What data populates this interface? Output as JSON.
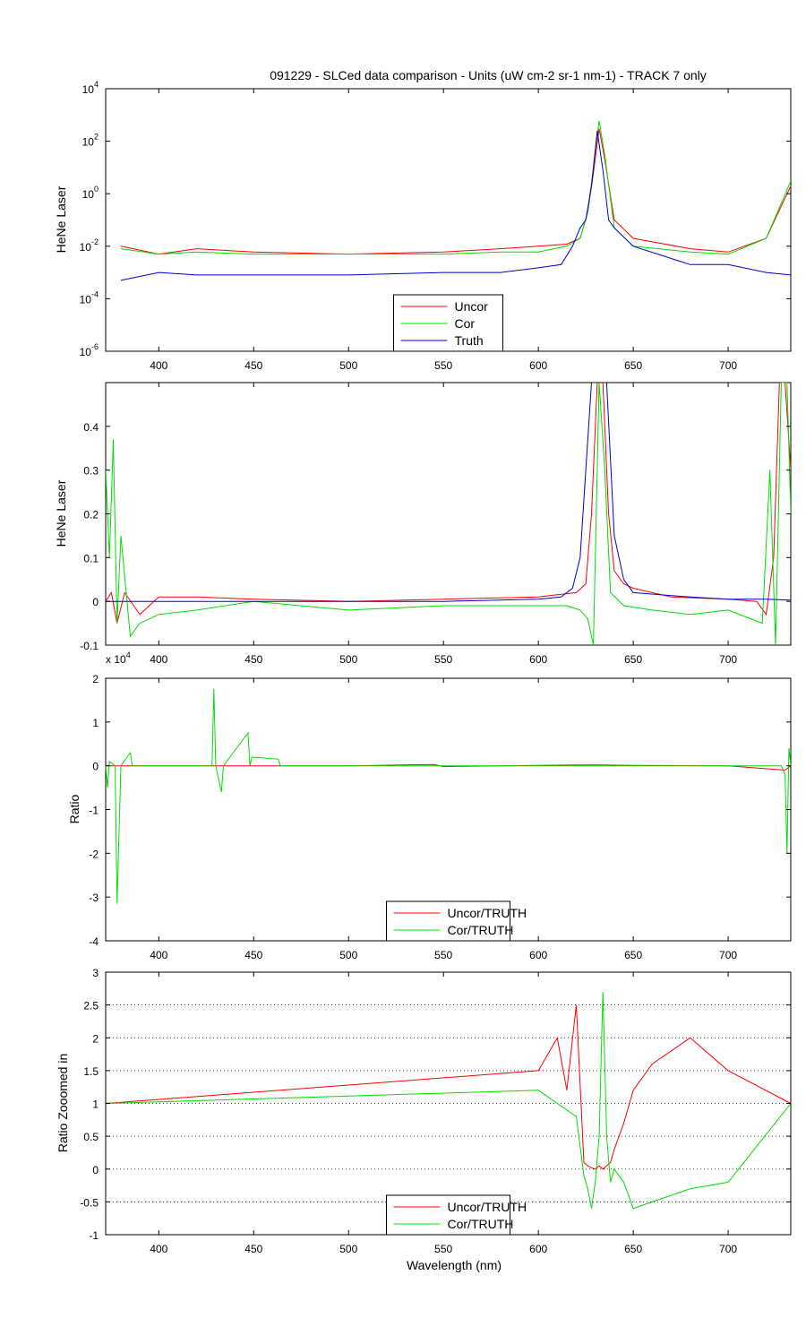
{
  "figure_title": "091229 - SLCed data comparison - Units (uW cm-2 sr-1 nm-1) - TRACK 7 only",
  "x_axis_label": "Wavelength (nm)",
  "colors": {
    "uncor": "#ff0000",
    "cor": "#00dd00",
    "truth": "#0000cc"
  },
  "chart_data": [
    {
      "type": "line",
      "ylabel": "HeNe Laser",
      "yscale": "log",
      "xlim": [
        372,
        733
      ],
      "ylim": [
        1e-06,
        10000.0
      ],
      "xticks": [
        "400",
        "450",
        "500",
        "550",
        "600",
        "650",
        "700"
      ],
      "yticks": [
        {
          "base": "10",
          "exp": "-6"
        },
        {
          "base": "10",
          "exp": "-4"
        },
        {
          "base": "10",
          "exp": "-2"
        },
        {
          "base": "10",
          "exp": "0"
        },
        {
          "base": "10",
          "exp": "2"
        },
        {
          "base": "10",
          "exp": "4"
        }
      ],
      "legend": [
        "Uncor",
        "Cor",
        "Truth"
      ],
      "legend_position": "bottom-center",
      "series": [
        {
          "name": "Uncor",
          "x": [
            380,
            400,
            420,
            450,
            500,
            550,
            580,
            600,
            615,
            622,
            626,
            629,
            632,
            635,
            640,
            650,
            680,
            700,
            720,
            733
          ],
          "y": [
            0.01,
            0.005,
            0.008,
            0.006,
            0.005,
            0.006,
            0.008,
            0.01,
            0.012,
            0.02,
            0.2,
            6,
            300,
            20,
            0.1,
            0.02,
            0.008,
            0.006,
            0.02,
            2
          ]
        },
        {
          "name": "Cor",
          "x": [
            380,
            400,
            420,
            450,
            500,
            550,
            580,
            600,
            615,
            622,
            626,
            629,
            632,
            635,
            640,
            650,
            680,
            700,
            720,
            733
          ],
          "y": [
            0.008,
            0.005,
            0.006,
            0.005,
            0.005,
            0.005,
            0.006,
            0.006,
            0.01,
            0.02,
            0.2,
            10,
            600,
            30,
            0.05,
            0.01,
            0.006,
            0.005,
            0.02,
            3
          ]
        },
        {
          "name": "Truth",
          "x": [
            380,
            400,
            420,
            450,
            500,
            550,
            580,
            600,
            612,
            618,
            622,
            625,
            628,
            631,
            634,
            637,
            640,
            650,
            680,
            700,
            720,
            733
          ],
          "y": [
            0.0005,
            0.001,
            0.0008,
            0.0008,
            0.0008,
            0.001,
            0.001,
            0.0015,
            0.002,
            0.01,
            0.05,
            0.1,
            2,
            250,
            8,
            0.1,
            0.05,
            0.01,
            0.002,
            0.002,
            0.001,
            0.0008
          ]
        }
      ]
    },
    {
      "type": "line",
      "ylabel": "HeNe Laser",
      "xlim": [
        372,
        733
      ],
      "ylim": [
        -0.1,
        0.5
      ],
      "xticks": [
        "400",
        "450",
        "500",
        "550",
        "600",
        "650",
        "700"
      ],
      "yticks": [
        "-0.1",
        "0",
        "0.1",
        "0.2",
        "0.3",
        "0.4"
      ],
      "series": [
        {
          "name": "Uncor",
          "x": [
            372,
            375,
            378,
            382,
            390,
            400,
            420,
            450,
            500,
            550,
            600,
            610,
            620,
            625,
            628,
            631,
            634,
            637,
            640,
            645,
            650,
            670,
            700,
            715,
            720,
            724,
            727,
            730,
            733
          ],
          "y": [
            0.0,
            0.02,
            -0.05,
            0.02,
            -0.03,
            0.01,
            0.01,
            0.005,
            0.0,
            0.005,
            0.01,
            0.015,
            0.02,
            0.04,
            0.2,
            0.5,
            0.5,
            0.2,
            0.07,
            0.04,
            0.03,
            0.01,
            0.005,
            0.0,
            -0.03,
            0.1,
            0.5,
            0.5,
            0.3
          ]
        },
        {
          "name": "Cor",
          "x": [
            372,
            374,
            376,
            378,
            380,
            385,
            390,
            400,
            420,
            450,
            500,
            550,
            600,
            615,
            622,
            626,
            629,
            632,
            635,
            638,
            645,
            660,
            680,
            700,
            718,
            722,
            725,
            728,
            731,
            733
          ],
          "y": [
            0.3,
            0.1,
            0.37,
            -0.05,
            0.15,
            -0.08,
            -0.05,
            -0.03,
            -0.02,
            0.0,
            -0.02,
            -0.01,
            -0.01,
            -0.01,
            -0.02,
            -0.04,
            -0.1,
            0.5,
            0.3,
            0.02,
            -0.01,
            -0.02,
            -0.03,
            -0.02,
            -0.05,
            0.3,
            -0.1,
            0.5,
            0.5,
            0.2
          ]
        },
        {
          "name": "Truth",
          "x": [
            372,
            400,
            450,
            500,
            550,
            600,
            612,
            618,
            622,
            625,
            628,
            632,
            636,
            640,
            645,
            650,
            680,
            700,
            720,
            733
          ],
          "y": [
            0.0,
            0.0,
            0.0,
            0.0,
            0.0,
            0.005,
            0.01,
            0.03,
            0.1,
            0.3,
            0.5,
            0.5,
            0.5,
            0.15,
            0.05,
            0.02,
            0.01,
            0.005,
            0.005,
            0.003
          ]
        }
      ]
    },
    {
      "type": "line",
      "ylabel": "Ratio",
      "y_multiplier": "x 10",
      "y_multiplier_exp": "4",
      "xlim": [
        372,
        733
      ],
      "ylim": [
        -4,
        2
      ],
      "xticks": [
        "400",
        "450",
        "500",
        "550",
        "600",
        "650",
        "700"
      ],
      "yticks": [
        "-4",
        "-3",
        "-2",
        "-1",
        "0",
        "1",
        "2"
      ],
      "legend": [
        "Uncor/TRUTH",
        "Cor/TRUTH"
      ],
      "legend_position": "bottom-center",
      "series": [
        {
          "name": "Uncor/TRUTH",
          "x": [
            372,
            400,
            450,
            500,
            545,
            550,
            600,
            630,
            650,
            700,
            730,
            733
          ],
          "y": [
            0.0,
            0.0,
            0.0,
            0.0,
            0.03,
            -0.02,
            0.01,
            0.02,
            0.01,
            0.0,
            -0.1,
            0.0
          ]
        },
        {
          "name": "Cor/TRUTH",
          "x": [
            372,
            373,
            374,
            377,
            378,
            380,
            385,
            386,
            400,
            428,
            429,
            430,
            433,
            434,
            447,
            448,
            449,
            463,
            464,
            500,
            600,
            700,
            728,
            730,
            731,
            732,
            733
          ],
          "y": [
            0.0,
            -0.5,
            0.1,
            0.0,
            -3.15,
            0.0,
            0.3,
            0.0,
            0.0,
            0.0,
            1.75,
            0.0,
            -0.6,
            0.0,
            0.75,
            0.0,
            0.2,
            0.15,
            0.0,
            0.0,
            0.0,
            0.0,
            0.0,
            -0.2,
            -2.0,
            0.4,
            0.0
          ]
        }
      ]
    },
    {
      "type": "line",
      "ylabel": "Ratio Zooomed in",
      "xlim": [
        372,
        733
      ],
      "ylim": [
        -1,
        3
      ],
      "grid": "y-dotted",
      "xticks": [
        "400",
        "450",
        "500",
        "550",
        "600",
        "650",
        "700"
      ],
      "yticks": [
        "-1",
        "-0.5",
        "0",
        "0.5",
        "1",
        "1.5",
        "2",
        "2.5",
        "3"
      ],
      "legend": [
        "Uncor/TRUTH",
        "Cor/TRUTH"
      ],
      "legend_position": "bottom-center",
      "series": [
        {
          "name": "Uncor/TRUTH",
          "x": [
            372,
            600,
            610,
            615,
            620,
            624,
            626,
            628,
            630,
            632,
            634,
            636,
            638,
            640,
            645,
            650,
            660,
            680,
            700,
            733
          ],
          "y": [
            1.0,
            1.5,
            2.0,
            1.2,
            2.5,
            0.1,
            0.05,
            0.02,
            0.0,
            0.05,
            0.0,
            0.05,
            0.1,
            0.3,
            0.7,
            1.2,
            1.6,
            2.0,
            1.5,
            1.0
          ]
        },
        {
          "name": "Cor/TRUTH",
          "x": [
            372,
            600,
            610,
            620,
            624,
            626,
            628,
            630,
            632,
            634,
            636,
            638,
            640,
            645,
            650,
            660,
            680,
            700,
            733
          ],
          "y": [
            1.0,
            1.2,
            1.0,
            0.8,
            -0.1,
            -0.3,
            -0.6,
            -0.2,
            0.5,
            2.7,
            0.5,
            -0.2,
            0.0,
            -0.2,
            -0.6,
            -0.5,
            -0.3,
            -0.2,
            1.0
          ]
        }
      ]
    }
  ]
}
